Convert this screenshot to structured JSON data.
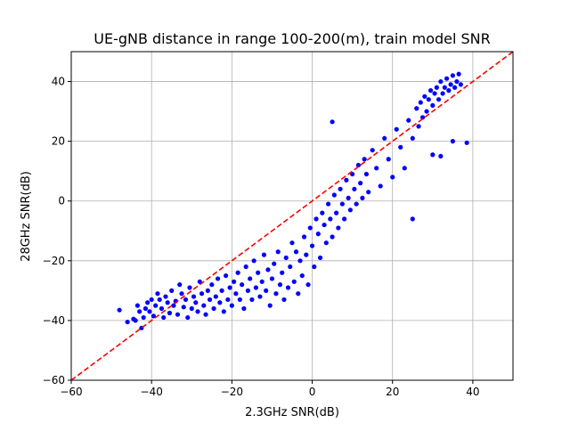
{
  "chart_data": {
    "type": "scatter",
    "title": "UE-gNB distance in range 100-200(m), train model SNR",
    "xlabel": "2.3GHz SNR(dB)",
    "ylabel": "28GHz SNR(dB)",
    "xlim": [
      -60,
      50
    ],
    "ylim": [
      -60,
      50
    ],
    "xticks": [
      -60,
      -40,
      -20,
      0,
      20,
      40
    ],
    "yticks": [
      -60,
      -40,
      -20,
      0,
      20,
      40
    ],
    "xtick_labels": [
      "−60",
      "−40",
      "−20",
      "0",
      "20",
      "40"
    ],
    "ytick_labels": [
      "−60",
      "−40",
      "−20",
      "0",
      "20",
      "40"
    ],
    "grid": true,
    "legend": null,
    "colors": {
      "points": "#0000ff",
      "reference_line": "#ff0000",
      "grid": "#b0b0b0"
    },
    "reference_line": {
      "style": "dashed",
      "x": [
        -60,
        50
      ],
      "y": [
        -60,
        50
      ]
    },
    "series": [
      {
        "marker": "circle",
        "points": [
          [
            -48,
            -36.5
          ],
          [
            -46,
            -40.5
          ],
          [
            -44.5,
            -39.5
          ],
          [
            -44,
            -40
          ],
          [
            -43.5,
            -35
          ],
          [
            -43,
            -37
          ],
          [
            -42.5,
            -42.5
          ],
          [
            -42,
            -39
          ],
          [
            -41.5,
            -36
          ],
          [
            -41,
            -34
          ],
          [
            -40.5,
            -37
          ],
          [
            -40,
            -33
          ],
          [
            -39.5,
            -38.5
          ],
          [
            -39,
            -35
          ],
          [
            -38.5,
            -31
          ],
          [
            -38,
            -33
          ],
          [
            -37.5,
            -36
          ],
          [
            -37,
            -39
          ],
          [
            -36.5,
            -32
          ],
          [
            -36,
            -34
          ],
          [
            -35.5,
            -37.5
          ],
          [
            -35,
            -30
          ],
          [
            -34.5,
            -35
          ],
          [
            -34,
            -33.5
          ],
          [
            -33.5,
            -38
          ],
          [
            -33,
            -28
          ],
          [
            -32.5,
            -31
          ],
          [
            -32,
            -35.5
          ],
          [
            -31.5,
            -33
          ],
          [
            -31,
            -39
          ],
          [
            -30.5,
            -29
          ],
          [
            -30,
            -36
          ],
          [
            -29.5,
            -32
          ],
          [
            -29,
            -34
          ],
          [
            -28.5,
            -37
          ],
          [
            -28,
            -27
          ],
          [
            -27.5,
            -31
          ],
          [
            -27,
            -35
          ],
          [
            -26.5,
            -38
          ],
          [
            -26,
            -30
          ],
          [
            -25.5,
            -33
          ],
          [
            -25,
            -28
          ],
          [
            -24.5,
            -36
          ],
          [
            -24,
            -32
          ],
          [
            -23.5,
            -26
          ],
          [
            -23,
            -34
          ],
          [
            -22.5,
            -30
          ],
          [
            -22,
            -37
          ],
          [
            -21.5,
            -25
          ],
          [
            -21,
            -33
          ],
          [
            -20.5,
            -29
          ],
          [
            -20,
            -35
          ],
          [
            -19.5,
            -27
          ],
          [
            -19,
            -31
          ],
          [
            -18.5,
            -24
          ],
          [
            -18,
            -33
          ],
          [
            -17.5,
            -28
          ],
          [
            -17,
            -36
          ],
          [
            -16.5,
            -22
          ],
          [
            -16,
            -30
          ],
          [
            -15.5,
            -26
          ],
          [
            -15,
            -33
          ],
          [
            -14.5,
            -20
          ],
          [
            -14,
            -29
          ],
          [
            -13.5,
            -24
          ],
          [
            -13,
            -32
          ],
          [
            -12.5,
            -27
          ],
          [
            -12,
            -18
          ],
          [
            -11.5,
            -30
          ],
          [
            -11,
            -23
          ],
          [
            -10.5,
            -35
          ],
          [
            -10,
            -26
          ],
          [
            -9.5,
            -21
          ],
          [
            -9,
            -31
          ],
          [
            -8.5,
            -17
          ],
          [
            -8,
            -28
          ],
          [
            -7.5,
            -24
          ],
          [
            -7,
            -33
          ],
          [
            -6.5,
            -19
          ],
          [
            -6,
            -29
          ],
          [
            -5.5,
            -22
          ],
          [
            -5,
            -14
          ],
          [
            -4.5,
            -27
          ],
          [
            -4,
            -17
          ],
          [
            -3.5,
            -31
          ],
          [
            -3,
            -20
          ],
          [
            -2.5,
            -25
          ],
          [
            -2,
            -12
          ],
          [
            -1.5,
            -18
          ],
          [
            -1,
            -28
          ],
          [
            -0.5,
            -9
          ],
          [
            0,
            -15
          ],
          [
            0.5,
            -22
          ],
          [
            1,
            -6
          ],
          [
            1.5,
            -11
          ],
          [
            2,
            -19
          ],
          [
            2.5,
            -4
          ],
          [
            3,
            -8
          ],
          [
            3.5,
            -14
          ],
          [
            4,
            -1
          ],
          [
            4.5,
            -6
          ],
          [
            5,
            -12
          ],
          [
            5.5,
            2
          ],
          [
            6,
            -4
          ],
          [
            6.5,
            -9
          ],
          [
            7,
            4
          ],
          [
            7.5,
            -1
          ],
          [
            8,
            -6
          ],
          [
            8.5,
            7
          ],
          [
            9,
            1
          ],
          [
            9.5,
            -3
          ],
          [
            10,
            9
          ],
          [
            10.5,
            4
          ],
          [
            11,
            -1
          ],
          [
            11.5,
            12
          ],
          [
            12,
            6
          ],
          [
            12.5,
            1
          ],
          [
            13,
            14
          ],
          [
            13.5,
            9
          ],
          [
            14,
            3
          ],
          [
            15,
            17
          ],
          [
            16,
            11
          ],
          [
            17,
            5
          ],
          [
            18,
            21
          ],
          [
            19,
            14
          ],
          [
            20,
            8
          ],
          [
            21,
            24
          ],
          [
            22,
            18
          ],
          [
            23,
            11
          ],
          [
            24,
            27
          ],
          [
            25,
            21
          ],
          [
            26,
            31
          ],
          [
            26.5,
            25
          ],
          [
            27,
            33
          ],
          [
            27.5,
            28
          ],
          [
            28,
            35
          ],
          [
            28.5,
            30
          ],
          [
            29,
            34
          ],
          [
            29.5,
            37
          ],
          [
            30,
            32
          ],
          [
            30.5,
            36
          ],
          [
            31,
            38
          ],
          [
            31.5,
            34
          ],
          [
            32,
            40
          ],
          [
            32.5,
            36
          ],
          [
            33,
            38
          ],
          [
            33.5,
            41
          ],
          [
            34,
            37
          ],
          [
            34.5,
            39
          ],
          [
            35,
            42
          ],
          [
            35.5,
            38
          ],
          [
            36,
            40
          ],
          [
            36.5,
            42.5
          ],
          [
            37,
            39
          ],
          [
            32,
            15
          ],
          [
            25,
            -6
          ],
          [
            5,
            26.5
          ],
          [
            30,
            15.5
          ],
          [
            35,
            20
          ],
          [
            38.5,
            19.5
          ]
        ]
      }
    ]
  }
}
